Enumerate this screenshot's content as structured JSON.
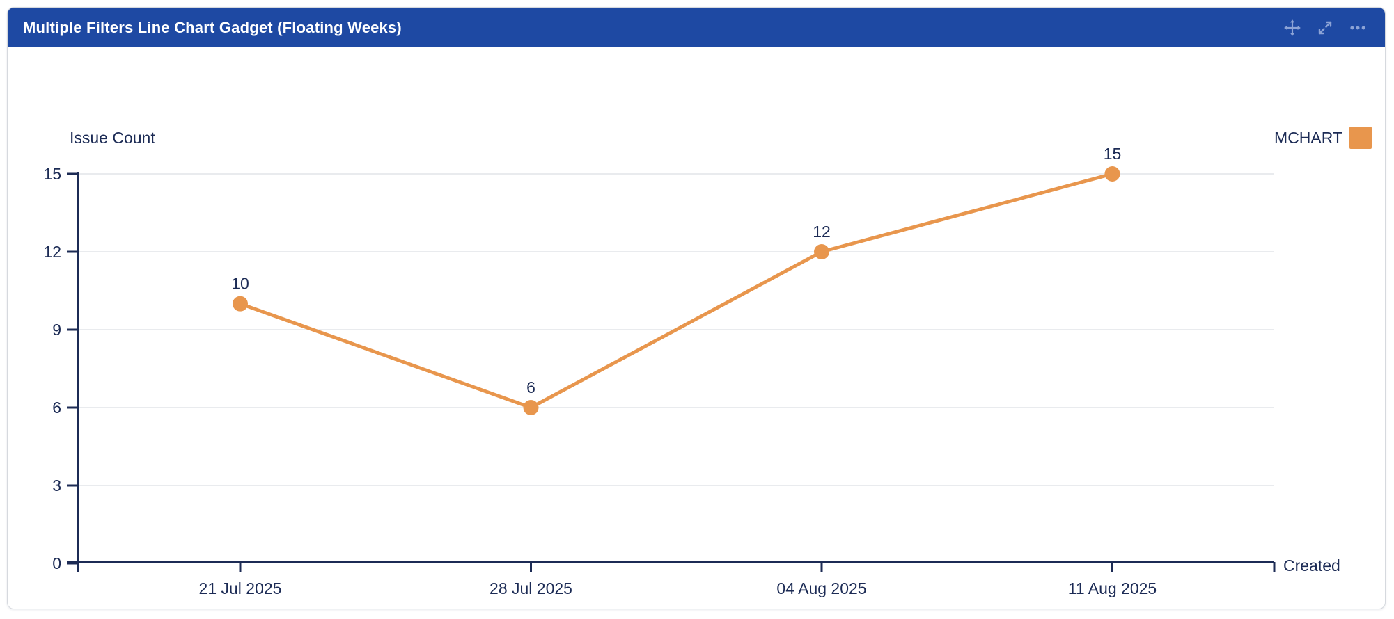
{
  "header": {
    "title": "Multiple Filters Line Chart Gadget (Floating Weeks)",
    "icons": [
      {
        "name": "move-icon"
      },
      {
        "name": "expand-icon"
      },
      {
        "name": "more-icon"
      }
    ]
  },
  "colors": {
    "header_bg": "#1e49a3",
    "header_text": "#ffffff",
    "header_icon": "#8ca3d6",
    "series_orange": "#e8964d",
    "axis_text": "#1c2b55",
    "grid_line": "#e9ebee",
    "card_border": "#d6d9de"
  },
  "chart_data": {
    "type": "line",
    "title": "",
    "ylabel": "Issue Count",
    "xlabel": "Created",
    "categories": [
      "21 Jul 2025",
      "28 Jul 2025",
      "04 Aug 2025",
      "11 Aug 2025"
    ],
    "series": [
      {
        "name": "MCHART",
        "values": [
          10,
          6,
          12,
          15
        ],
        "color": "#e8964d"
      }
    ],
    "yticks": [
      0,
      3,
      6,
      9,
      12,
      15
    ],
    "ylim": [
      0,
      15
    ],
    "grid": true,
    "data_labels": true,
    "legend_position": "top-right",
    "marker": "circle"
  }
}
